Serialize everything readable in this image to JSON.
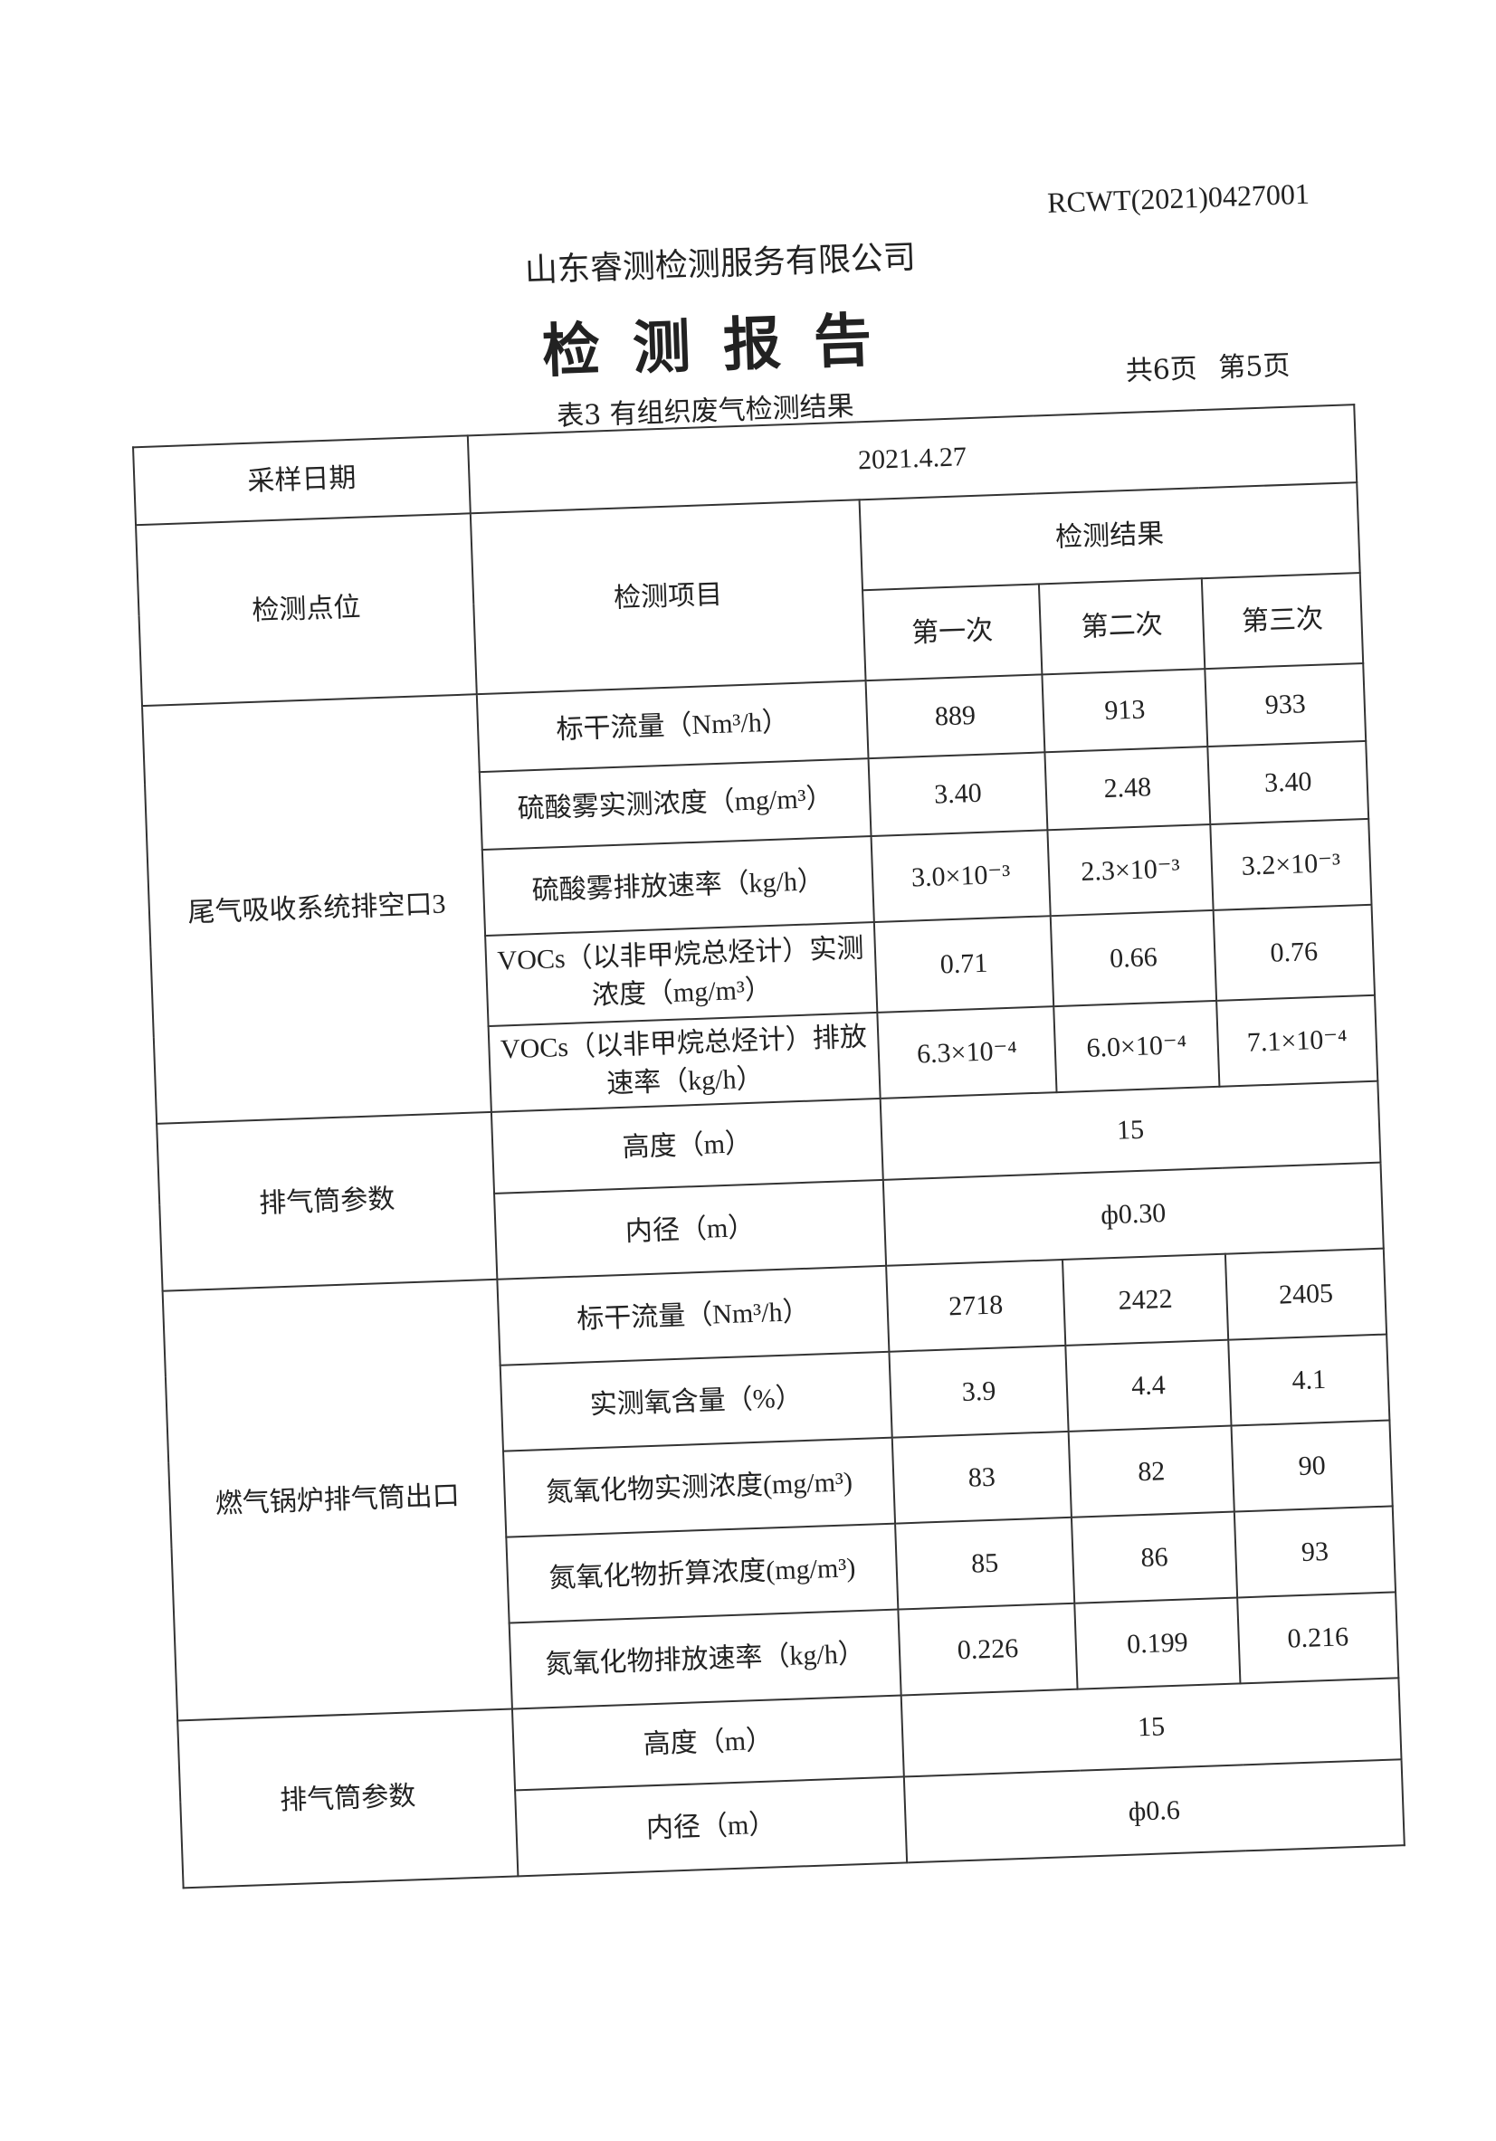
{
  "header": {
    "report_no": "RCWT(2021)0427001",
    "company": "山东睿测检测服务有限公司",
    "title": "检测报告",
    "table_caption": "表3  有组织废气检测结果",
    "page_info": "共6页  第5页"
  },
  "table": {
    "date_label": "采样日期",
    "date_value": "2021.4.27",
    "col_point": "检测点位",
    "col_item": "检测项目",
    "col_result": "检测结果",
    "runs": [
      "第一次",
      "第二次",
      "第三次"
    ],
    "sections": [
      {
        "point": "尾气吸收系统排空口3",
        "rows": [
          {
            "item": "标干流量（Nm³/h）",
            "values": [
              "889",
              "913",
              "933"
            ]
          },
          {
            "item": "硫酸雾实测浓度（mg/m³）",
            "values": [
              "3.40",
              "2.48",
              "3.40"
            ]
          },
          {
            "item": "硫酸雾排放速率（kg/h）",
            "values": [
              "3.0×10⁻³",
              "2.3×10⁻³",
              "3.2×10⁻³"
            ]
          },
          {
            "item": "VOCs（以非甲烷总烃计）实测浓度（mg/m³）",
            "values": [
              "0.71",
              "0.66",
              "0.76"
            ]
          },
          {
            "item": "VOCs（以非甲烷总烃计）排放速率（kg/h）",
            "values": [
              "6.3×10⁻⁴",
              "6.0×10⁻⁴",
              "7.1×10⁻⁴"
            ]
          }
        ],
        "stack": {
          "label": "排气筒参数",
          "height_label": "高度（m）",
          "height": "15",
          "diameter_label": "内径（m）",
          "diameter": "ф0.30"
        }
      },
      {
        "point": "燃气锅炉排气筒出口",
        "rows": [
          {
            "item": "标干流量（Nm³/h）",
            "values": [
              "2718",
              "2422",
              "2405"
            ]
          },
          {
            "item": "实测氧含量（%）",
            "values": [
              "3.9",
              "4.4",
              "4.1"
            ]
          },
          {
            "item": "氮氧化物实测浓度(mg/m³)",
            "values": [
              "83",
              "82",
              "90"
            ]
          },
          {
            "item": "氮氧化物折算浓度(mg/m³)",
            "values": [
              "85",
              "86",
              "93"
            ]
          },
          {
            "item": "氮氧化物排放速率（kg/h）",
            "values": [
              "0.226",
              "0.199",
              "0.216"
            ]
          }
        ],
        "stack": {
          "label": "排气筒参数",
          "height_label": "高度（m）",
          "height": "15",
          "diameter_label": "内径（m）",
          "diameter": "ф0.6"
        }
      }
    ]
  }
}
